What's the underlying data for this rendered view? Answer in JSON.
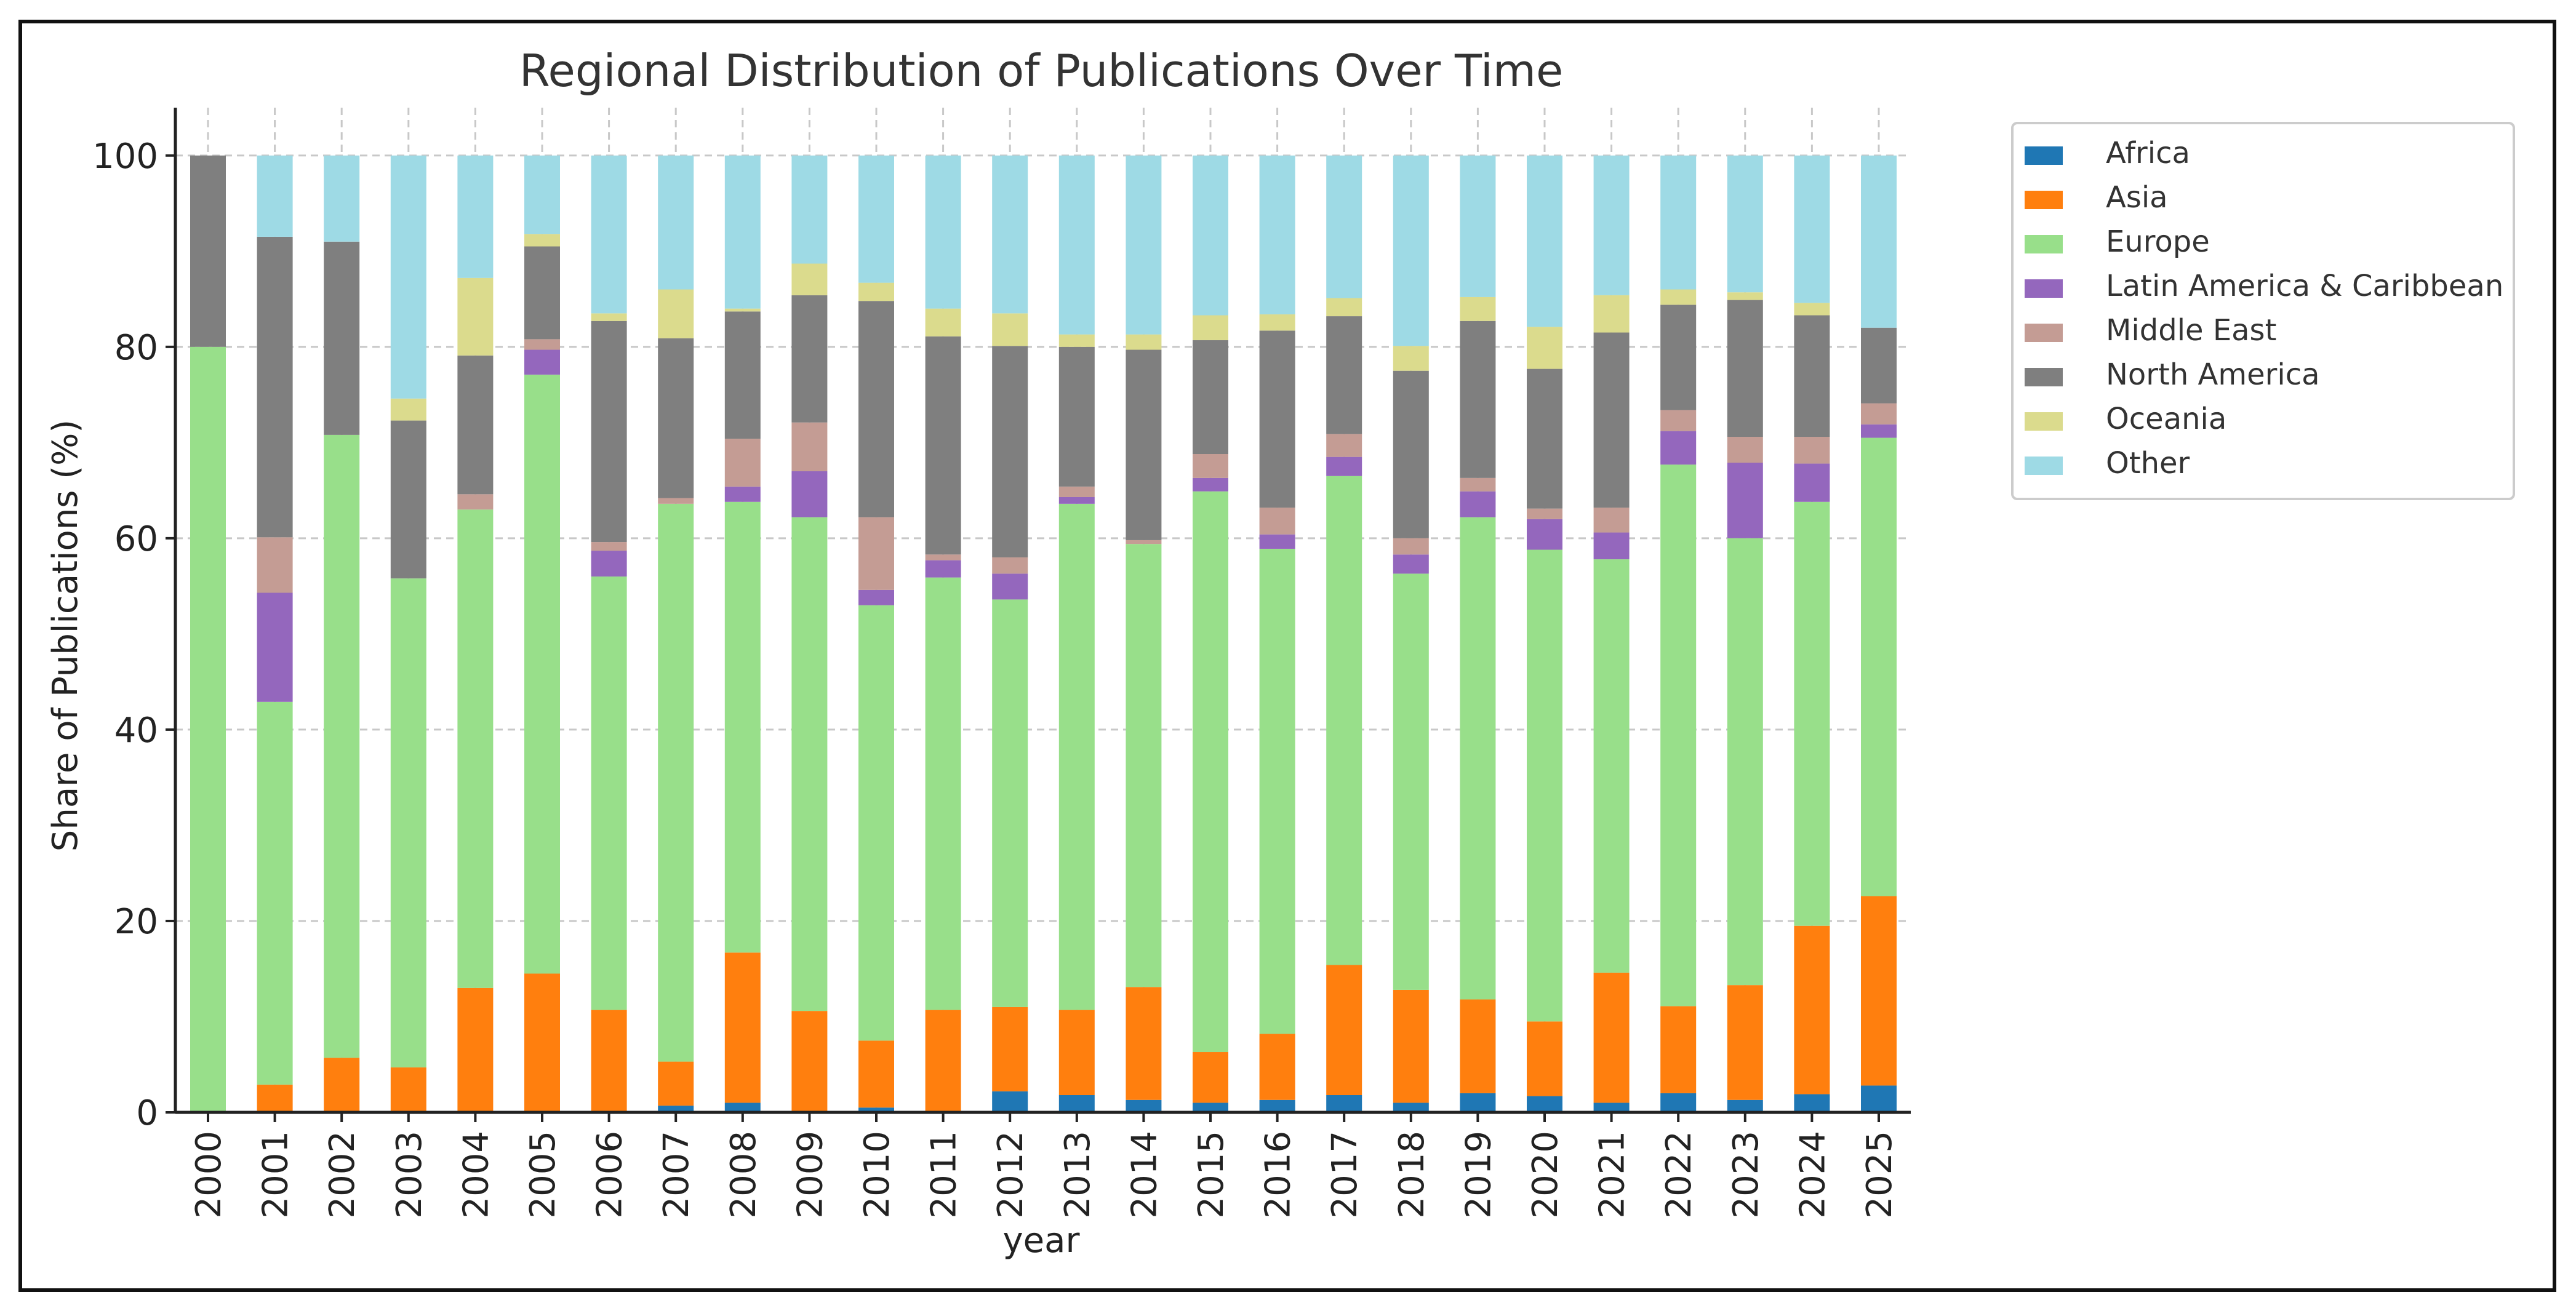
{
  "chart_data": {
    "type": "bar",
    "stacked": true,
    "title": "Regional Distribution of Publications Over Time",
    "xlabel": "year",
    "ylabel": "Share of Publications (%)",
    "ylim": [
      0,
      105
    ],
    "yticks": [
      0,
      20,
      40,
      60,
      80,
      100
    ],
    "grid": true,
    "legend_position": "top-right (outside plot)",
    "categories": [
      "2000",
      "2001",
      "2002",
      "2003",
      "2004",
      "2005",
      "2006",
      "2007",
      "2008",
      "2009",
      "2010",
      "2011",
      "2012",
      "2013",
      "2014",
      "2015",
      "2016",
      "2017",
      "2018",
      "2019",
      "2020",
      "2021",
      "2022",
      "2023",
      "2024",
      "2025"
    ],
    "series": [
      {
        "name": "Africa",
        "color": "#1f77b4",
        "values": [
          0,
          0,
          0,
          0,
          0,
          0,
          0,
          0.7,
          1.0,
          0,
          0.5,
          0,
          2.2,
          1.8,
          1.3,
          1.0,
          1.3,
          1.8,
          1.0,
          2.0,
          1.7,
          1.0,
          2.0,
          1.3,
          1.9,
          2.8
        ]
      },
      {
        "name": "Asia",
        "color": "#ff7f0e",
        "values": [
          0,
          2.9,
          5.7,
          4.7,
          13.0,
          14.5,
          10.7,
          4.6,
          15.7,
          10.6,
          7.0,
          10.7,
          8.8,
          8.9,
          11.8,
          5.3,
          6.9,
          13.6,
          11.8,
          9.8,
          7.8,
          13.6,
          9.1,
          12.0,
          17.6,
          19.8
        ]
      },
      {
        "name": "Europe",
        "color": "#98df8a",
        "values": [
          80.0,
          40.0,
          65.1,
          51.1,
          50.0,
          62.6,
          45.3,
          58.3,
          47.1,
          51.6,
          45.5,
          45.2,
          42.6,
          52.9,
          46.3,
          58.6,
          50.7,
          51.1,
          43.5,
          50.4,
          49.3,
          43.2,
          56.6,
          46.7,
          44.3,
          47.9
        ]
      },
      {
        "name": "Latin America & Caribbean",
        "color": "#9467bd",
        "values": [
          0,
          11.4,
          0,
          0,
          0,
          2.6,
          2.7,
          0,
          1.6,
          4.8,
          1.6,
          1.8,
          2.7,
          0.7,
          0,
          1.4,
          1.5,
          2.0,
          2.0,
          2.7,
          3.2,
          2.8,
          3.5,
          7.9,
          4.0,
          1.4
        ]
      },
      {
        "name": "Middle East",
        "color": "#c49c94",
        "values": [
          0,
          5.8,
          0,
          0,
          1.6,
          1.1,
          0.9,
          0.6,
          5.0,
          5.1,
          7.6,
          0.6,
          1.7,
          1.1,
          0.4,
          2.5,
          2.8,
          2.4,
          1.7,
          1.4,
          1.1,
          2.6,
          2.2,
          2.7,
          2.8,
          2.2
        ]
      },
      {
        "name": "North America",
        "color": "#7f7f7f",
        "values": [
          20.0,
          31.4,
          20.2,
          16.5,
          14.5,
          9.7,
          23.1,
          16.7,
          13.3,
          13.3,
          22.6,
          22.8,
          22.1,
          14.6,
          19.9,
          11.9,
          18.5,
          12.3,
          17.5,
          16.4,
          14.6,
          18.3,
          11.0,
          14.3,
          12.7,
          7.9
        ]
      },
      {
        "name": "Oceania",
        "color": "#dbdb8d",
        "values": [
          0,
          0,
          0,
          2.3,
          8.1,
          1.3,
          0.8,
          5.1,
          0.3,
          3.3,
          1.9,
          2.9,
          3.4,
          1.3,
          1.6,
          2.6,
          1.7,
          1.9,
          2.6,
          2.5,
          4.4,
          3.9,
          1.6,
          0.8,
          1.3,
          0
        ]
      },
      {
        "name": "Other",
        "color": "#9edae5",
        "values": [
          0,
          8.5,
          9.0,
          25.4,
          12.8,
          8.2,
          16.5,
          14.0,
          16.0,
          11.3,
          13.3,
          16.0,
          16.5,
          18.7,
          18.7,
          16.7,
          16.6,
          14.9,
          19.9,
          14.8,
          17.9,
          14.6,
          14.0,
          14.3,
          15.4,
          18.0
        ]
      }
    ]
  }
}
